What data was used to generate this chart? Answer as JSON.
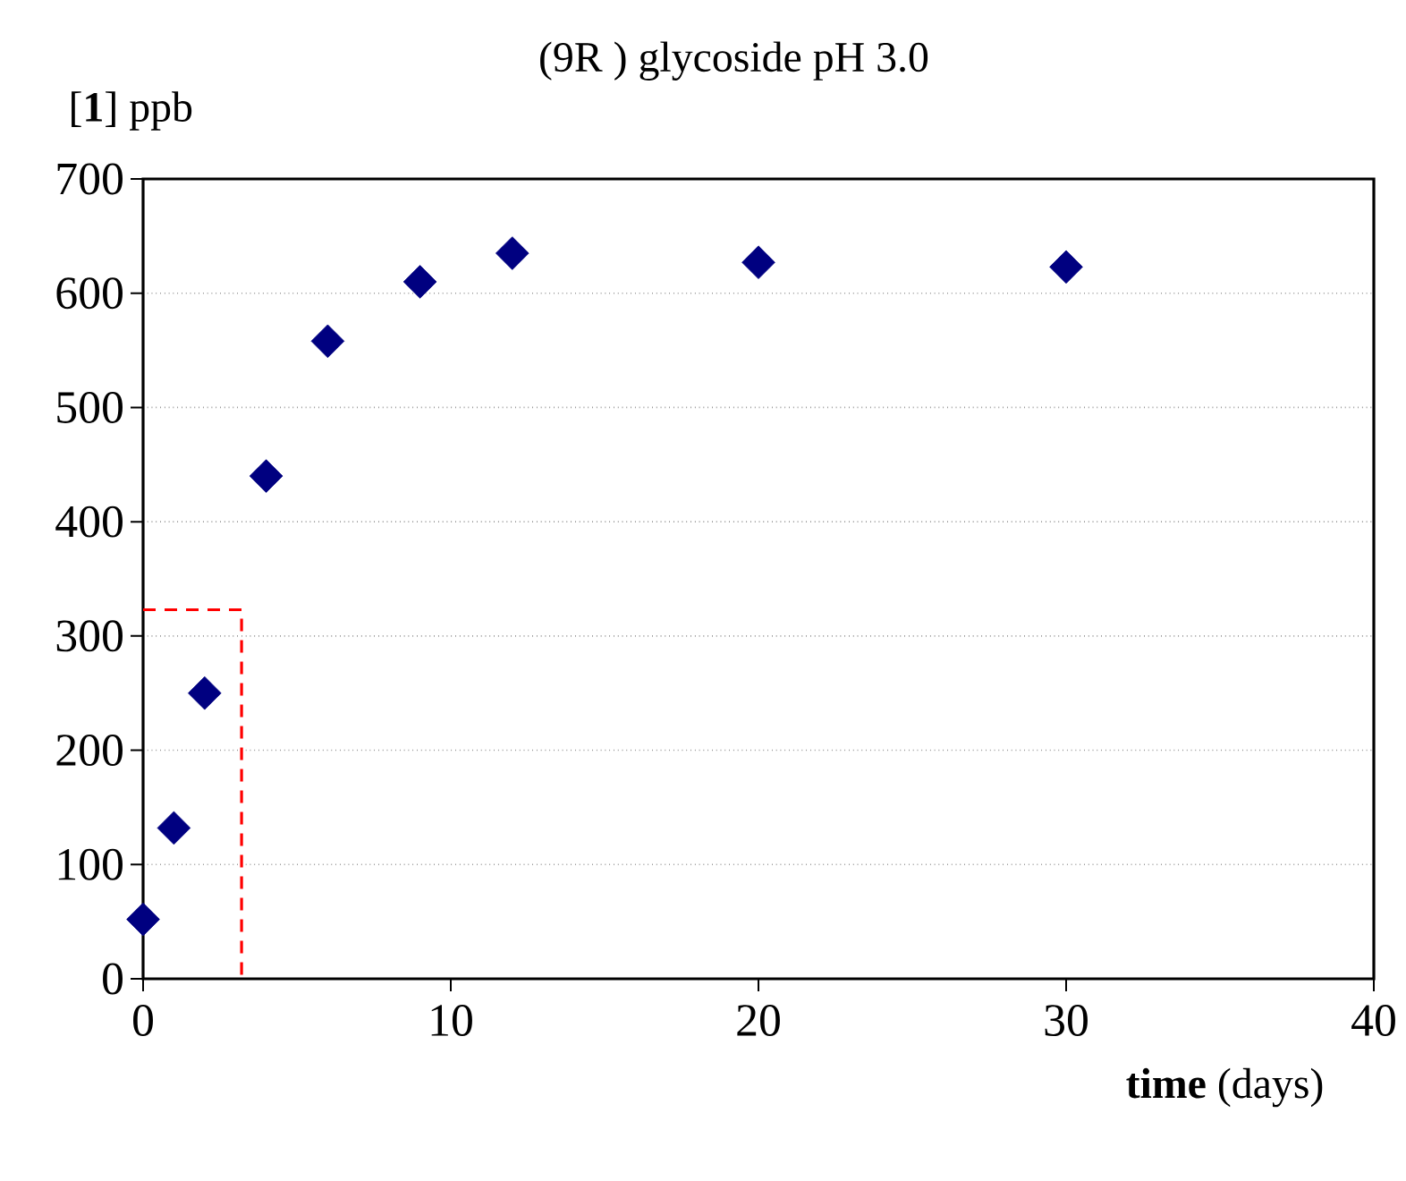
{
  "chart_data": {
    "type": "scatter",
    "title": "(9R ) glycoside pH 3.0",
    "xlabel": "**time** (days)",
    "ylabel": "[**1**] ppb",
    "xlim": [
      0,
      40
    ],
    "xticks": [
      0,
      10,
      20,
      30,
      40
    ],
    "ylim": [
      0,
      700
    ],
    "yticks": [
      0,
      100,
      200,
      300,
      400,
      500,
      600,
      700
    ],
    "grid": "y",
    "series": [
      {
        "color": "#000080",
        "marker": "diamond",
        "x": [
          0,
          1,
          2,
          4,
          6,
          9,
          12,
          20,
          30
        ],
        "values": [
          52,
          132,
          250,
          440,
          558,
          610,
          635,
          627,
          623
        ]
      },
      {
        "type": "line",
        "color": "#ff0000",
        "line_style": "dashed",
        "marker": "none",
        "x": [
          0,
          3.2,
          3.2
        ],
        "values": [
          323,
          323,
          0
        ]
      }
    ]
  }
}
